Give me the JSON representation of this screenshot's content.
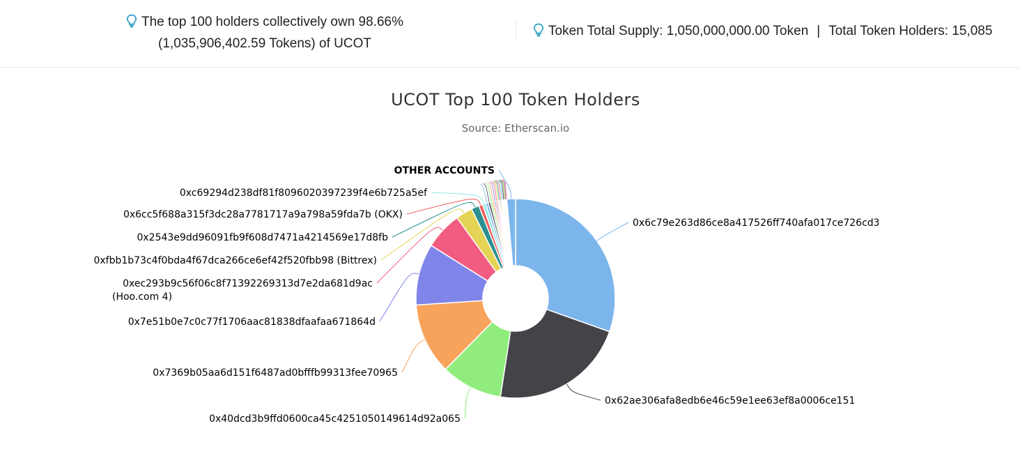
{
  "summary": {
    "top_holders_line1": "The top 100 holders collectively own 98.66%",
    "top_holders_line2": "(1,035,906,402.59 Tokens) of UCOT",
    "total_supply": "Token Total Supply: 1,050,000,000.00 Token",
    "separator": "|",
    "total_holders": "Total Token Holders: 15,085",
    "icon": "lightbulb-icon",
    "icon_color": "#2a9ec4"
  },
  "chart_data": {
    "type": "pie",
    "title": "UCOT Top 100 Token Holders",
    "subtitle": "Source: Etherscan.io",
    "unit": "% of supply",
    "slices": [
      {
        "label": "0x6c79e263d86ce8a417526ff740afa017ce726cd3",
        "value": 29.0,
        "color": "#7cb5ec"
      },
      {
        "label": "0x62ae306afa8edb6e46c59e1ee63ef8a0006ce151",
        "value": 21.0,
        "color": "#434348"
      },
      {
        "label": "0x40dcd3b9ffd0600ca45c4251050149614d92a065",
        "value": 9.5,
        "color": "#90ed7d"
      },
      {
        "label": "0x7369b05aa6d151f6487ad0bfffb99313fee70965",
        "value": 11.0,
        "color": "#f7a35c"
      },
      {
        "label": "0x7e51b0e7c0c77f1706aac81838dfaafaa671864d",
        "value": 9.5,
        "color": "#8085e9"
      },
      {
        "label": "0xec293b9c56f06c8f71392269313d7e2da681d9ac",
        "label2": "(Hoo.com 4)",
        "value": 5.8,
        "color": "#f15c80"
      },
      {
        "label": "0xfbb1b73c4f0bda4f67dca266ce6ef42f520fbb98 (Bittrex)",
        "value": 2.6,
        "color": "#e4d354"
      },
      {
        "label": "0x2543e9dd96091fb9f608d7471a4214569e17d8fb",
        "value": 1.2,
        "color": "#2b908f"
      },
      {
        "label": "0x6cc5f688a315f3dc28a7781717a9a798a59fda7b (OKX)",
        "value": 0.6,
        "color": "#f45b5b"
      },
      {
        "label": "0xc69294d238df81f8096020397239f4e6b725a5ef",
        "value": 0.5,
        "color": "#91e8e1"
      },
      {
        "label": "",
        "value": 0.4,
        "color": "#7cb5ec"
      },
      {
        "label": "",
        "value": 0.35,
        "color": "#434348"
      },
      {
        "label": "",
        "value": 0.3,
        "color": "#90ed7d"
      },
      {
        "label": "",
        "value": 0.3,
        "color": "#f7a35c"
      },
      {
        "label": "",
        "value": 0.25,
        "color": "#8085e9"
      },
      {
        "label": "",
        "value": 0.25,
        "color": "#f15c80"
      },
      {
        "label": "",
        "value": 0.2,
        "color": "#e4d354"
      },
      {
        "label": "",
        "value": 0.2,
        "color": "#2b908f"
      },
      {
        "label": "",
        "value": 0.2,
        "color": "#f45b5b"
      },
      {
        "label": "",
        "value": 0.15,
        "color": "#91e8e1"
      },
      {
        "label": "",
        "value": 0.15,
        "color": "#7cb5ec"
      },
      {
        "label": "",
        "value": 0.15,
        "color": "#434348"
      },
      {
        "label": "",
        "value": 0.1,
        "color": "#90ed7d"
      },
      {
        "label": "",
        "value": 0.1,
        "color": "#f7a35c"
      },
      {
        "label": "",
        "value": 0.1,
        "color": "#8085e9"
      },
      {
        "label": "",
        "value": 0.1,
        "color": "#f15c80"
      },
      {
        "label": "OTHER ACCOUNTS",
        "value": 1.34,
        "color": "#7cb5ec"
      }
    ]
  }
}
